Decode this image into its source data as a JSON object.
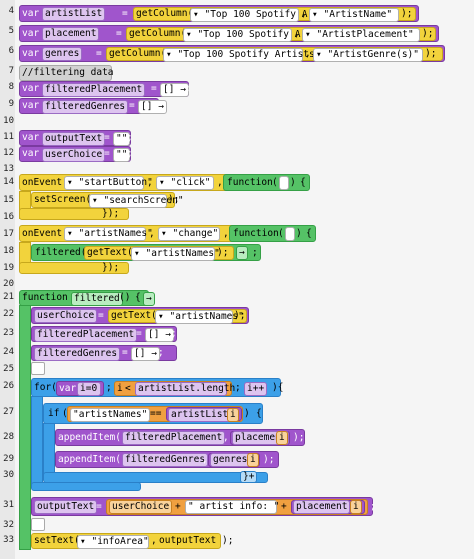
{
  "line_numbers": [
    "4",
    "5",
    "6",
    "7",
    "8",
    "9",
    "10",
    "11",
    "12",
    "13",
    "14",
    "15",
    "16",
    "17",
    "18",
    "19",
    "20",
    "21",
    "22",
    "23",
    "24",
    "25",
    "26",
    "27",
    "28",
    "29",
    "30",
    "31",
    "32",
    "33"
  ],
  "code": {
    "l4": {
      "kw": "var",
      "name": "artistList",
      "eq": "=",
      "fn": "getColumn(",
      "dd1": "▾",
      "arg1": "\"Top 100 Spotify Artists\"",
      "comma": ",",
      "dd2": "▾",
      "arg2": "\"ArtistName\"",
      "close": ");"
    },
    "l5": {
      "kw": "var",
      "name": "placement",
      "eq": "=",
      "fn": "getColumn(",
      "dd1": "▾",
      "arg1": "\"Top 100 Spotify Artists\"",
      "comma": ",",
      "dd2": "▾",
      "arg2": "\"ArtistPlacement\"",
      "close": ");"
    },
    "l6": {
      "kw": "var",
      "name": "genres",
      "eq": "=",
      "fn": "getColumn(",
      "dd1": "▾",
      "arg1": "\"Top 100 Spotify Artists\"",
      "comma": ",",
      "dd2": "▾",
      "arg2": "\"ArtistGenre(s)\"",
      "close": ");"
    },
    "l7": {
      "comment": "//filtering data"
    },
    "l8": {
      "kw": "var",
      "name": "filteredPlacement",
      "eq": "=",
      "val": "[]",
      "arrow": "→",
      "semi": ";"
    },
    "l9": {
      "kw": "var",
      "name": "filteredGenres",
      "eq": "=",
      "val": "[]",
      "arrow": "→",
      "semi": ";"
    },
    "l11": {
      "kw": "var",
      "name": "outputText",
      "eq": "=",
      "val": "\"\"",
      "semi": ";"
    },
    "l12": {
      "kw": "var",
      "name": "userChoice",
      "eq": "=",
      "val": "\"\"",
      "semi": ";"
    },
    "l14": {
      "fn": "onEvent(",
      "dd1": "▾",
      "arg1": "\"startButton\"",
      "comma1": ",",
      "dd2": "▾",
      "arg2": "\"click\"",
      "comma2": ",",
      "fkw": "function",
      "paren": "(",
      "paren_close": ")",
      "brace": "{"
    },
    "l15": {
      "fn": "setScreen(",
      "dd": "▾",
      "arg": "\"searchScreen\"",
      "close": ");"
    },
    "l16": {
      "close": "});"
    },
    "l17": {
      "fn": "onEvent(",
      "dd1": "▾",
      "arg1": "\"artistNames\"",
      "comma1": ",",
      "dd2": "▾",
      "arg2": "\"change\"",
      "comma2": ",",
      "fkw": "function",
      "paren": "(",
      "paren_close": ")",
      "brace": "{"
    },
    "l18": {
      "fn": "filtered(",
      "inner": "getText(",
      "dd": "▾",
      "arg": "\"artistNames\"",
      "close": ");",
      "arrow": "→",
      "semi": ";"
    },
    "l19": {
      "close": "});"
    },
    "l21": {
      "kw": "function",
      "name": "filtered",
      "paren": "()",
      "brace": "{",
      "arrow": "→"
    },
    "l22": {
      "name": "userChoice",
      "eq": "=",
      "fn": "getText(",
      "dd": "▾",
      "arg": "\"artistNames\"",
      "close": ");"
    },
    "l23": {
      "name": "filteredPlacement",
      "eq": "=",
      "val": "[]",
      "arrow": "→",
      "semi": ";"
    },
    "l24": {
      "name": "filteredGenres",
      "eq": "=",
      "val": "[]",
      "arrow": "→",
      "semi": ";"
    },
    "l26": {
      "kw": "for(",
      "var": "var",
      "i": "i",
      "eq": "=",
      "zero": "0",
      "semi1": ";",
      "i2": "i",
      "lt": "<",
      "len": "artistList.length",
      "semi2": ";",
      "inc": "i++",
      "close": "){"
    },
    "l27": {
      "kw": "if",
      "paren": "(",
      "str": "\"artistNames\"",
      "op": "==",
      "arr": "artistList",
      "idx": "i",
      "close": ")",
      "brace": "{"
    },
    "l28": {
      "fn": "appendItem(",
      "arg1": "filteredPlacement",
      "comma": ",",
      "arr": "placement",
      "idx": "i",
      "close": ");"
    },
    "l29": {
      "fn": "appendItem(",
      "arg1": "filteredGenres",
      "comma": ",",
      "arr": "genres",
      "idx": "i",
      "close": ");"
    },
    "l30": {
      "close": "}",
      "pm": "+"
    },
    "l31": {
      "name": "outputText",
      "eq": "=",
      "v1": "userChoice",
      "plus1": "+",
      "str": "\" artist info: \"",
      "plus2": "+",
      "arr": "placement",
      "idx": "i",
      "close": ";"
    },
    "l33": {
      "fn": "setText(",
      "dd": "▾",
      "arg1": "\"infoArea\"",
      "comma": ",",
      "arg2": "outputText",
      "close": ");"
    }
  }
}
